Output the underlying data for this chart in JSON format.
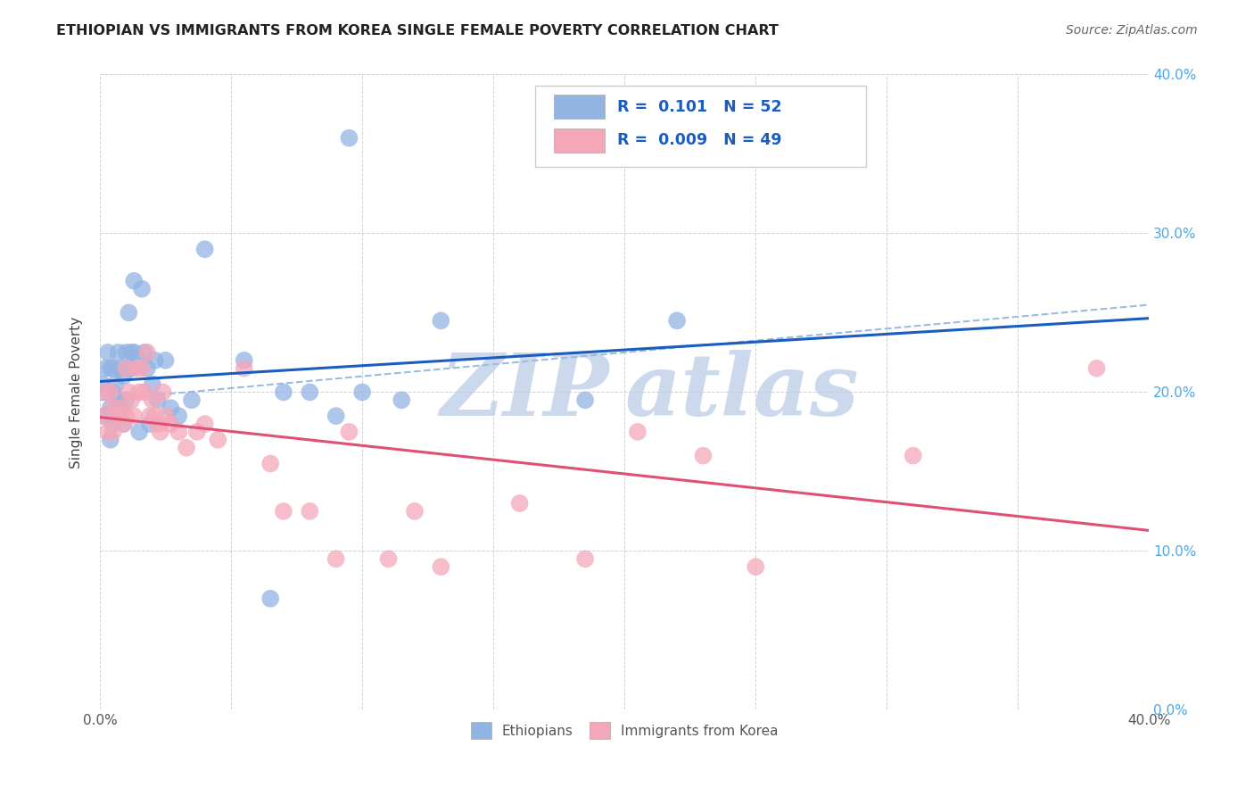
{
  "title": "ETHIOPIAN VS IMMIGRANTS FROM KOREA SINGLE FEMALE POVERTY CORRELATION CHART",
  "source": "Source: ZipAtlas.com",
  "ylabel": "Single Female Poverty",
  "xlim": [
    0.0,
    0.4
  ],
  "ylim": [
    0.0,
    0.4
  ],
  "xtick_positions": [
    0.0,
    0.05,
    0.1,
    0.15,
    0.2,
    0.25,
    0.3,
    0.35,
    0.4
  ],
  "xtick_labels": [
    "0.0%",
    "",
    "",
    "",
    "",
    "",
    "",
    "",
    "40.0%"
  ],
  "ytick_positions": [
    0.0,
    0.1,
    0.2,
    0.3,
    0.4
  ],
  "ytick_labels_right": [
    "0.0%",
    "10.0%",
    "20.0%",
    "30.0%",
    "40.0%"
  ],
  "ethiopian_color": "#92b4e3",
  "korea_color": "#f4a7b9",
  "trend_eth_color": "#1a5cbf",
  "trend_kor_color": "#e05075",
  "dash_color": "#9bbde0",
  "legend_eth_label": "Ethiopians",
  "legend_kor_label": "Immigrants from Korea",
  "legend_r1": "R =  0.101   N = 52",
  "legend_r2": "R =  0.009   N = 49",
  "legend_text_color": "#1a5cbf",
  "right_axis_color": "#4da6e8",
  "eth_x": [
    0.001,
    0.002,
    0.002,
    0.003,
    0.003,
    0.004,
    0.004,
    0.004,
    0.005,
    0.005,
    0.005,
    0.006,
    0.006,
    0.007,
    0.007,
    0.008,
    0.008,
    0.009,
    0.009,
    0.01,
    0.01,
    0.011,
    0.011,
    0.012,
    0.012,
    0.013,
    0.013,
    0.014,
    0.015,
    0.016,
    0.017,
    0.018,
    0.019,
    0.02,
    0.021,
    0.022,
    0.025,
    0.027,
    0.03,
    0.035,
    0.04,
    0.055,
    0.065,
    0.07,
    0.08,
    0.09,
    0.095,
    0.1,
    0.115,
    0.13,
    0.185,
    0.22
  ],
  "eth_y": [
    0.205,
    0.215,
    0.185,
    0.225,
    0.2,
    0.215,
    0.19,
    0.17,
    0.215,
    0.2,
    0.18,
    0.205,
    0.185,
    0.225,
    0.195,
    0.215,
    0.19,
    0.21,
    0.18,
    0.225,
    0.195,
    0.25,
    0.215,
    0.225,
    0.215,
    0.27,
    0.225,
    0.22,
    0.175,
    0.265,
    0.225,
    0.215,
    0.18,
    0.205,
    0.22,
    0.195,
    0.22,
    0.19,
    0.185,
    0.195,
    0.29,
    0.22,
    0.07,
    0.2,
    0.2,
    0.185,
    0.36,
    0.2,
    0.195,
    0.245,
    0.195,
    0.245
  ],
  "kor_x": [
    0.001,
    0.002,
    0.003,
    0.004,
    0.005,
    0.005,
    0.006,
    0.007,
    0.008,
    0.009,
    0.01,
    0.01,
    0.011,
    0.012,
    0.013,
    0.014,
    0.015,
    0.016,
    0.017,
    0.018,
    0.019,
    0.02,
    0.021,
    0.022,
    0.023,
    0.024,
    0.025,
    0.027,
    0.03,
    0.033,
    0.037,
    0.04,
    0.045,
    0.055,
    0.065,
    0.07,
    0.08,
    0.09,
    0.095,
    0.11,
    0.12,
    0.13,
    0.16,
    0.185,
    0.205,
    0.23,
    0.25,
    0.31,
    0.38
  ],
  "kor_y": [
    0.185,
    0.2,
    0.175,
    0.2,
    0.19,
    0.175,
    0.185,
    0.185,
    0.19,
    0.18,
    0.215,
    0.185,
    0.2,
    0.195,
    0.185,
    0.215,
    0.2,
    0.215,
    0.2,
    0.225,
    0.185,
    0.195,
    0.185,
    0.18,
    0.175,
    0.2,
    0.185,
    0.18,
    0.175,
    0.165,
    0.175,
    0.18,
    0.17,
    0.215,
    0.155,
    0.125,
    0.125,
    0.095,
    0.175,
    0.095,
    0.125,
    0.09,
    0.13,
    0.095,
    0.175,
    0.16,
    0.09,
    0.16,
    0.215
  ],
  "watermark_zip_color": "#ccd9ed",
  "watermark_atlas_color": "#ccd9ed"
}
